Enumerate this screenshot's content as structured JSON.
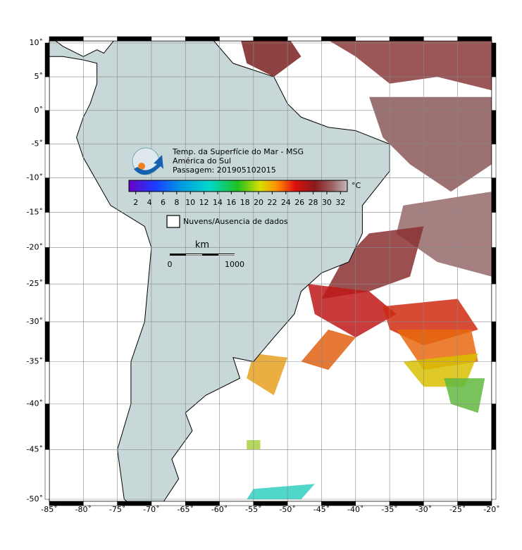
{
  "title_lines": [
    "Temp. da Superfície do Mar - MSG",
    "América do Sul",
    "Passagem: 201905102015"
  ],
  "colorbar": {
    "ticks": [
      2,
      4,
      6,
      8,
      10,
      12,
      14,
      16,
      18,
      20,
      22,
      24,
      26,
      28,
      30,
      32
    ],
    "unit": "°C"
  },
  "legend": {
    "label": "Nuvens/Ausencia de dados"
  },
  "scale_bar": {
    "unit": "km",
    "start": 0,
    "end": 1000
  },
  "lon_ticks": [
    {
      "value": -85,
      "label": "-85˚"
    },
    {
      "value": -80,
      "label": "-80˚"
    },
    {
      "value": -75,
      "label": "-75˚"
    },
    {
      "value": -70,
      "label": "-70˚"
    },
    {
      "value": -65,
      "label": "-65˚"
    },
    {
      "value": -60,
      "label": "-60˚"
    },
    {
      "value": -55,
      "label": "-55˚"
    },
    {
      "value": -50,
      "label": "-50˚"
    },
    {
      "value": -45,
      "label": "-45˚"
    },
    {
      "value": -40,
      "label": "-40˚"
    },
    {
      "value": -35,
      "label": "-35˚"
    },
    {
      "value": -30,
      "label": "-30˚"
    },
    {
      "value": -25,
      "label": "-25˚"
    },
    {
      "value": -20,
      "label": "-20˚"
    }
  ],
  "lat_ticks": [
    {
      "value": 10,
      "label": "10˚"
    },
    {
      "value": 5,
      "label": "5˚"
    },
    {
      "value": 0,
      "label": "0˚"
    },
    {
      "value": -5,
      "label": "-5˚"
    },
    {
      "value": -10,
      "label": "-10˚"
    },
    {
      "value": -15,
      "label": "-15˚"
    },
    {
      "value": -20,
      "label": "-20˚"
    },
    {
      "value": -25,
      "label": "-25˚"
    },
    {
      "value": -30,
      "label": "-30˚"
    },
    {
      "value": -35,
      "label": "-35˚"
    },
    {
      "value": -40,
      "label": "-40˚"
    },
    {
      "value": -45,
      "label": "-45˚"
    },
    {
      "value": -50,
      "label": "-50˚"
    }
  ]
}
